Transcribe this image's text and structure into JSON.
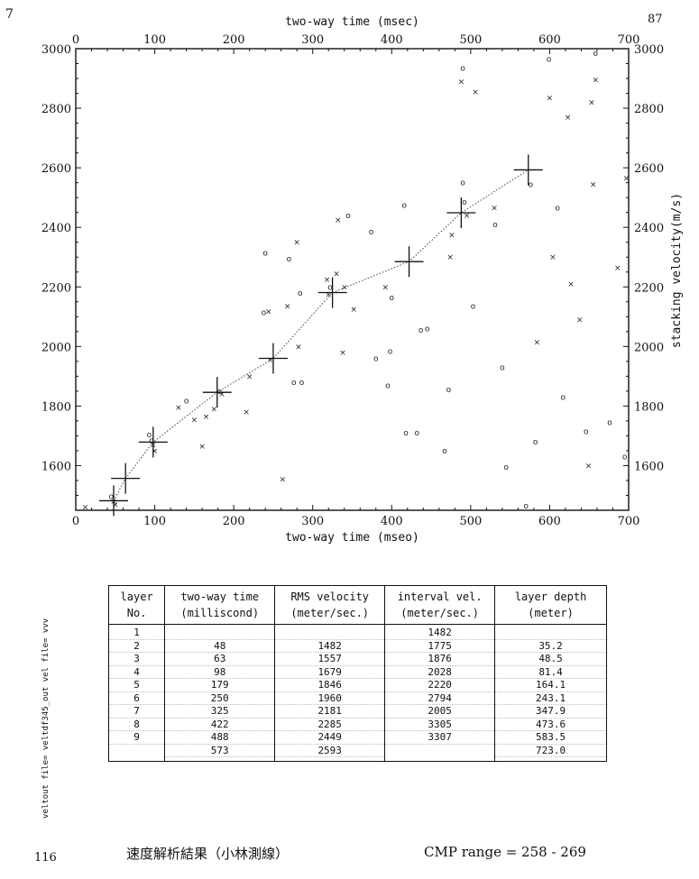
{
  "page": {
    "corner_left": "7",
    "corner_right": "87",
    "side_label": "veltout file= veltdf345_out  vel file= vvv",
    "caption": "速度解析結果（小林測線）",
    "cmp_range": "CMP range = 258 - 269",
    "page_mark": "116"
  },
  "chart_data": {
    "type": "scatter",
    "top_xlabel": "two-way time (msec)",
    "xlabel": "two-way time (mseo)",
    "ylabel": "stacking velocity(m/s)",
    "xlim": [
      0,
      700
    ],
    "ylim": [
      1450,
      3000
    ],
    "x_ticks": [
      0,
      100,
      200,
      300,
      400,
      500,
      600,
      700
    ],
    "y_ticks_left": [
      1600,
      1800,
      2000,
      2200,
      2400,
      2600,
      2800,
      3000
    ],
    "y_ticks_right": [
      1600,
      1800,
      2000,
      2200,
      2400,
      2600,
      2800,
      3000
    ],
    "grid": false,
    "picked_velocity_function": {
      "x": [
        48,
        63,
        98,
        179,
        250,
        325,
        422,
        488,
        573
      ],
      "y": [
        1482,
        1557,
        1679,
        1846,
        1960,
        2181,
        2285,
        2449,
        2593
      ]
    },
    "semblance_picks": [
      {
        "x": 12,
        "y": 1460,
        "m": "x"
      },
      {
        "x": 48,
        "y": 1480,
        "m": "x"
      },
      {
        "x": 45,
        "y": 1497,
        "m": "o"
      },
      {
        "x": 50,
        "y": 1470,
        "m": "x"
      },
      {
        "x": 96,
        "y": 1685,
        "m": "o"
      },
      {
        "x": 98,
        "y": 1670,
        "m": "x"
      },
      {
        "x": 100,
        "y": 1650,
        "m": "x"
      },
      {
        "x": 93,
        "y": 1705,
        "m": "o"
      },
      {
        "x": 130,
        "y": 1795,
        "m": "x"
      },
      {
        "x": 140,
        "y": 1818,
        "m": "o"
      },
      {
        "x": 150,
        "y": 1755,
        "m": "x"
      },
      {
        "x": 160,
        "y": 1665,
        "m": "x"
      },
      {
        "x": 165,
        "y": 1765,
        "m": "x"
      },
      {
        "x": 175,
        "y": 1790,
        "m": "x"
      },
      {
        "x": 182,
        "y": 1850,
        "m": "o"
      },
      {
        "x": 185,
        "y": 1840,
        "m": "x"
      },
      {
        "x": 216,
        "y": 1780,
        "m": "x"
      },
      {
        "x": 220,
        "y": 1900,
        "m": "x"
      },
      {
        "x": 238,
        "y": 2115,
        "m": "o"
      },
      {
        "x": 240,
        "y": 2315,
        "m": "o"
      },
      {
        "x": 244,
        "y": 2118,
        "m": "x"
      },
      {
        "x": 246,
        "y": 1955,
        "m": "x"
      },
      {
        "x": 262,
        "y": 1555,
        "m": "x"
      },
      {
        "x": 268,
        "y": 2135,
        "m": "x"
      },
      {
        "x": 270,
        "y": 2295,
        "m": "o"
      },
      {
        "x": 276,
        "y": 1880,
        "m": "o"
      },
      {
        "x": 280,
        "y": 2350,
        "m": "x"
      },
      {
        "x": 282,
        "y": 2000,
        "m": "x"
      },
      {
        "x": 284,
        "y": 2180,
        "m": "o"
      },
      {
        "x": 286,
        "y": 1880,
        "m": "o"
      },
      {
        "x": 318,
        "y": 2225,
        "m": "x"
      },
      {
        "x": 320,
        "y": 2175,
        "m": "x"
      },
      {
        "x": 322,
        "y": 2200,
        "m": "o"
      },
      {
        "x": 330,
        "y": 2245,
        "m": "x"
      },
      {
        "x": 332,
        "y": 2425,
        "m": "x"
      },
      {
        "x": 338,
        "y": 1980,
        "m": "x"
      },
      {
        "x": 340,
        "y": 2200,
        "m": "x"
      },
      {
        "x": 345,
        "y": 2440,
        "m": "o"
      },
      {
        "x": 352,
        "y": 2125,
        "m": "x"
      },
      {
        "x": 374,
        "y": 2385,
        "m": "o"
      },
      {
        "x": 380,
        "y": 1960,
        "m": "o"
      },
      {
        "x": 392,
        "y": 2200,
        "m": "x"
      },
      {
        "x": 395,
        "y": 1870,
        "m": "o"
      },
      {
        "x": 398,
        "y": 1985,
        "m": "o"
      },
      {
        "x": 400,
        "y": 2165,
        "m": "o"
      },
      {
        "x": 416,
        "y": 2475,
        "m": "o"
      },
      {
        "x": 418,
        "y": 1710,
        "m": "o"
      },
      {
        "x": 432,
        "y": 1710,
        "m": "o"
      },
      {
        "x": 437,
        "y": 2055,
        "m": "o"
      },
      {
        "x": 445,
        "y": 2060,
        "m": "o"
      },
      {
        "x": 467,
        "y": 1650,
        "m": "o"
      },
      {
        "x": 472,
        "y": 1855,
        "m": "o"
      },
      {
        "x": 474,
        "y": 2300,
        "m": "x"
      },
      {
        "x": 476,
        "y": 2375,
        "m": "x"
      },
      {
        "x": 488,
        "y": 2890,
        "m": "x"
      },
      {
        "x": 490,
        "y": 2935,
        "m": "o"
      },
      {
        "x": 490,
        "y": 2550,
        "m": "o"
      },
      {
        "x": 492,
        "y": 2485,
        "m": "o"
      },
      {
        "x": 495,
        "y": 2440,
        "m": "x"
      },
      {
        "x": 503,
        "y": 2135,
        "m": "o"
      },
      {
        "x": 506,
        "y": 2855,
        "m": "x"
      },
      {
        "x": 530,
        "y": 2465,
        "m": "x"
      },
      {
        "x": 531,
        "y": 2410,
        "m": "o"
      },
      {
        "x": 540,
        "y": 1930,
        "m": "o"
      },
      {
        "x": 545,
        "y": 1595,
        "m": "o"
      },
      {
        "x": 570,
        "y": 1465,
        "m": "o"
      },
      {
        "x": 576,
        "y": 2545,
        "m": "o"
      },
      {
        "x": 582,
        "y": 1680,
        "m": "o"
      },
      {
        "x": 584,
        "y": 2015,
        "m": "x"
      },
      {
        "x": 599,
        "y": 2965,
        "m": "o"
      },
      {
        "x": 600,
        "y": 2835,
        "m": "x"
      },
      {
        "x": 604,
        "y": 2300,
        "m": "x"
      },
      {
        "x": 610,
        "y": 2465,
        "m": "o"
      },
      {
        "x": 617,
        "y": 1830,
        "m": "o"
      },
      {
        "x": 623,
        "y": 2770,
        "m": "x"
      },
      {
        "x": 627,
        "y": 2210,
        "m": "x"
      },
      {
        "x": 638,
        "y": 2090,
        "m": "x"
      },
      {
        "x": 646,
        "y": 1715,
        "m": "o"
      },
      {
        "x": 649,
        "y": 1600,
        "m": "x"
      },
      {
        "x": 653,
        "y": 2820,
        "m": "x"
      },
      {
        "x": 655,
        "y": 2545,
        "m": "x"
      },
      {
        "x": 658,
        "y": 2895,
        "m": "x"
      },
      {
        "x": 658,
        "y": 2985,
        "m": "o"
      },
      {
        "x": 676,
        "y": 1745,
        "m": "o"
      },
      {
        "x": 686,
        "y": 2265,
        "m": "x"
      },
      {
        "x": 695,
        "y": 1630,
        "m": "o"
      },
      {
        "x": 697,
        "y": 2565,
        "m": "x"
      }
    ]
  },
  "table": {
    "headers": [
      [
        "layer",
        "No."
      ],
      [
        "two-way time",
        "(milliscond)"
      ],
      [
        "RMS velocity",
        "(meter/sec.)"
      ],
      [
        "interval vel.",
        "(meter/sec.)"
      ],
      [
        "layer depth",
        "(meter)"
      ]
    ],
    "columns": [
      [
        "1",
        "2",
        "3",
        "4",
        "5",
        "6",
        "7",
        "8",
        "9"
      ],
      [
        "",
        "48",
        "63",
        "98",
        "179",
        "250",
        "325",
        "422",
        "488",
        "573"
      ],
      [
        "",
        "1482",
        "1557",
        "1679",
        "1846",
        "1960",
        "2181",
        "2285",
        "2449",
        "2593"
      ],
      [
        "1482",
        "1775",
        "1876",
        "2028",
        "2220",
        "2794",
        "2005",
        "3305",
        "3307"
      ],
      [
        "",
        "35.2",
        "48.5",
        "81.4",
        "164.1",
        "243.1",
        "347.9",
        "473.6",
        "583.5",
        "723.0"
      ]
    ]
  }
}
